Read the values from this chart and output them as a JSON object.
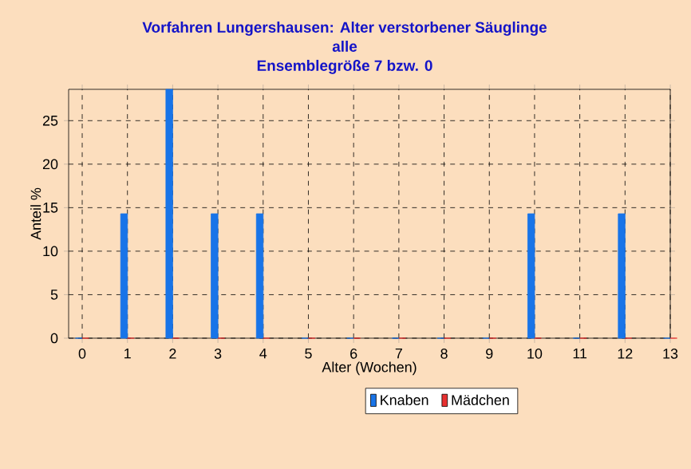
{
  "chart_data": {
    "type": "bar",
    "title": "Vorfahren Lungershausen: Alter verstorbener Säuglinge",
    "subtitle": "alle",
    "annotations": [
      "Ensemblegröße 7 bzw. 0"
    ],
    "xlabel": "Alter (Wochen)",
    "ylabel": "Anteil %",
    "x": [
      0,
      1,
      2,
      3,
      4,
      5,
      6,
      7,
      8,
      9,
      10,
      11,
      12,
      13
    ],
    "series": [
      {
        "name": "Knaben",
        "color": "#1874e8",
        "values": [
          0,
          14.3,
          28.6,
          14.3,
          14.3,
          0,
          0,
          0,
          0,
          0,
          14.3,
          0,
          14.3,
          0
        ]
      },
      {
        "name": "Mädchen",
        "color": "#e83030",
        "values": [
          0,
          0,
          0,
          0,
          0,
          0,
          0,
          0,
          0,
          0,
          0,
          0,
          0,
          0
        ]
      }
    ],
    "xlim": [
      -0.3,
      13
    ],
    "ylim": [
      0,
      28.6
    ],
    "xticks": [
      0,
      1,
      2,
      3,
      4,
      5,
      6,
      7,
      8,
      9,
      10,
      11,
      12,
      13
    ],
    "yticks": [
      0,
      5,
      10,
      15,
      20,
      25
    ],
    "grid": true,
    "legend": "bottom"
  }
}
